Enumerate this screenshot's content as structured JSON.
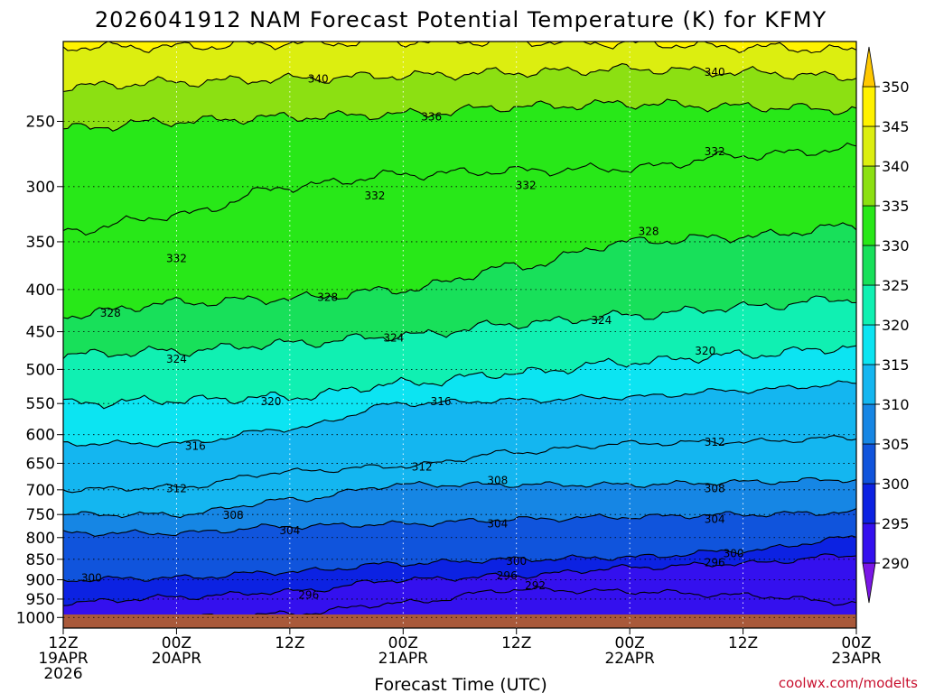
{
  "chart_data": {
    "type": "contour",
    "title": "2026041912 NAM Forecast Potential Temperature (K) for KFMY",
    "xlabel": "Forecast Time (UTC)",
    "credit": "coolwx.com/modelts",
    "y_axis": {
      "scale": "log-pressure",
      "range": [
        1030,
        200
      ],
      "ticks": [
        250,
        300,
        350,
        400,
        450,
        500,
        550,
        600,
        650,
        700,
        750,
        800,
        850,
        900,
        950,
        1000
      ]
    },
    "x_axis": {
      "range_hours": [
        0,
        84
      ],
      "ticks": [
        {
          "hour": 0,
          "lines": [
            "12Z",
            "19APR",
            "2026"
          ]
        },
        {
          "hour": 12,
          "lines": [
            "00Z",
            "20APR"
          ]
        },
        {
          "hour": 24,
          "lines": [
            "12Z"
          ]
        },
        {
          "hour": 36,
          "lines": [
            "00Z",
            "21APR"
          ]
        },
        {
          "hour": 48,
          "lines": [
            "12Z"
          ]
        },
        {
          "hour": 60,
          "lines": [
            "00Z",
            "22APR"
          ]
        },
        {
          "hour": 72,
          "lines": [
            "12Z"
          ]
        },
        {
          "hour": 84,
          "lines": [
            "00Z",
            "23APR"
          ]
        }
      ]
    },
    "grid": true,
    "colorbar": {
      "placement": "right",
      "levels": [
        290,
        295,
        300,
        305,
        310,
        315,
        320,
        325,
        330,
        335,
        340,
        345,
        350
      ],
      "colors": [
        "#7a16e6",
        "#3410ee",
        "#0c22e2",
        "#1054dc",
        "#1686e4",
        "#14b6f0",
        "#0ce4f2",
        "#10f0b2",
        "#18e05a",
        "#28e818",
        "#8ce012",
        "#dcee10",
        "#fff200",
        "#ffc800"
      ]
    },
    "contour_interval_K": 4,
    "contour_labels": [
      {
        "value": 340,
        "hour": 27,
        "p": 222
      },
      {
        "value": 340,
        "hour": 69,
        "p": 218
      },
      {
        "value": 336,
        "hour": 39,
        "p": 247
      },
      {
        "value": 332,
        "hour": 69,
        "p": 272
      },
      {
        "value": 332,
        "hour": 33,
        "p": 308
      },
      {
        "value": 332,
        "hour": 49,
        "p": 299
      },
      {
        "value": 332,
        "hour": 12,
        "p": 367
      },
      {
        "value": 328,
        "hour": 62,
        "p": 340
      },
      {
        "value": 328,
        "hour": 28,
        "p": 409
      },
      {
        "value": 328,
        "hour": 5,
        "p": 427
      },
      {
        "value": 324,
        "hour": 57,
        "p": 436
      },
      {
        "value": 324,
        "hour": 35,
        "p": 458
      },
      {
        "value": 324,
        "hour": 12,
        "p": 486
      },
      {
        "value": 320,
        "hour": 68,
        "p": 475
      },
      {
        "value": 320,
        "hour": 22,
        "p": 547
      },
      {
        "value": 316,
        "hour": 40,
        "p": 547
      },
      {
        "value": 316,
        "hour": 14,
        "p": 620
      },
      {
        "value": 312,
        "hour": 69,
        "p": 613
      },
      {
        "value": 312,
        "hour": 38,
        "p": 657
      },
      {
        "value": 312,
        "hour": 12,
        "p": 698
      },
      {
        "value": 308,
        "hour": 46,
        "p": 682
      },
      {
        "value": 308,
        "hour": 69,
        "p": 698
      },
      {
        "value": 308,
        "hour": 18,
        "p": 752
      },
      {
        "value": 304,
        "hour": 24,
        "p": 784
      },
      {
        "value": 304,
        "hour": 46,
        "p": 770
      },
      {
        "value": 304,
        "hour": 69,
        "p": 760
      },
      {
        "value": 300,
        "hour": 3,
        "p": 895
      },
      {
        "value": 300,
        "hour": 48,
        "p": 855
      },
      {
        "value": 300,
        "hour": 71,
        "p": 837
      },
      {
        "value": 296,
        "hour": 69,
        "p": 858
      },
      {
        "value": 296,
        "hour": 47,
        "p": 890
      },
      {
        "value": 296,
        "hour": 26,
        "p": 940
      },
      {
        "value": 292,
        "hour": 50,
        "p": 915
      }
    ],
    "isotherm_profile": {
      "hours": [
        0,
        12,
        24,
        36,
        48,
        60,
        72,
        84
      ],
      "levels": [
        {
          "value": 344,
          "p": [
            203,
            203,
            201,
            200,
            200,
            201,
            203,
            205
          ]
        },
        {
          "value": 340,
          "p": [
            227,
            224,
            222,
            220,
            218,
            216,
            218,
            221
          ]
        },
        {
          "value": 336,
          "p": [
            255,
            250,
            247,
            245,
            240,
            238,
            240,
            242
          ]
        },
        {
          "value": 332,
          "p": [
            340,
            325,
            300,
            290,
            287,
            285,
            275,
            270
          ]
        },
        {
          "value": 328,
          "p": [
            430,
            415,
            410,
            400,
            375,
            350,
            345,
            335
          ]
        },
        {
          "value": 324,
          "p": [
            480,
            475,
            465,
            455,
            440,
            430,
            420,
            410
          ]
        },
        {
          "value": 320,
          "p": [
            550,
            545,
            540,
            520,
            505,
            490,
            480,
            470
          ]
        },
        {
          "value": 316,
          "p": [
            615,
            615,
            590,
            550,
            545,
            540,
            530,
            520
          ]
        },
        {
          "value": 312,
          "p": [
            700,
            695,
            665,
            655,
            630,
            615,
            612,
            605
          ]
        },
        {
          "value": 308,
          "p": [
            750,
            750,
            720,
            690,
            690,
            690,
            685,
            680
          ]
        },
        {
          "value": 304,
          "p": [
            790,
            790,
            775,
            770,
            760,
            755,
            750,
            745
          ]
        },
        {
          "value": 300,
          "p": [
            900,
            895,
            880,
            860,
            850,
            845,
            830,
            800
          ]
        },
        {
          "value": 296,
          "p": [
            960,
            945,
            930,
            900,
            890,
            870,
            860,
            840
          ]
        },
        {
          "value": 292,
          "p": [
            1010,
            1000,
            990,
            960,
            925,
            930,
            940,
            960
          ]
        }
      ]
    }
  }
}
